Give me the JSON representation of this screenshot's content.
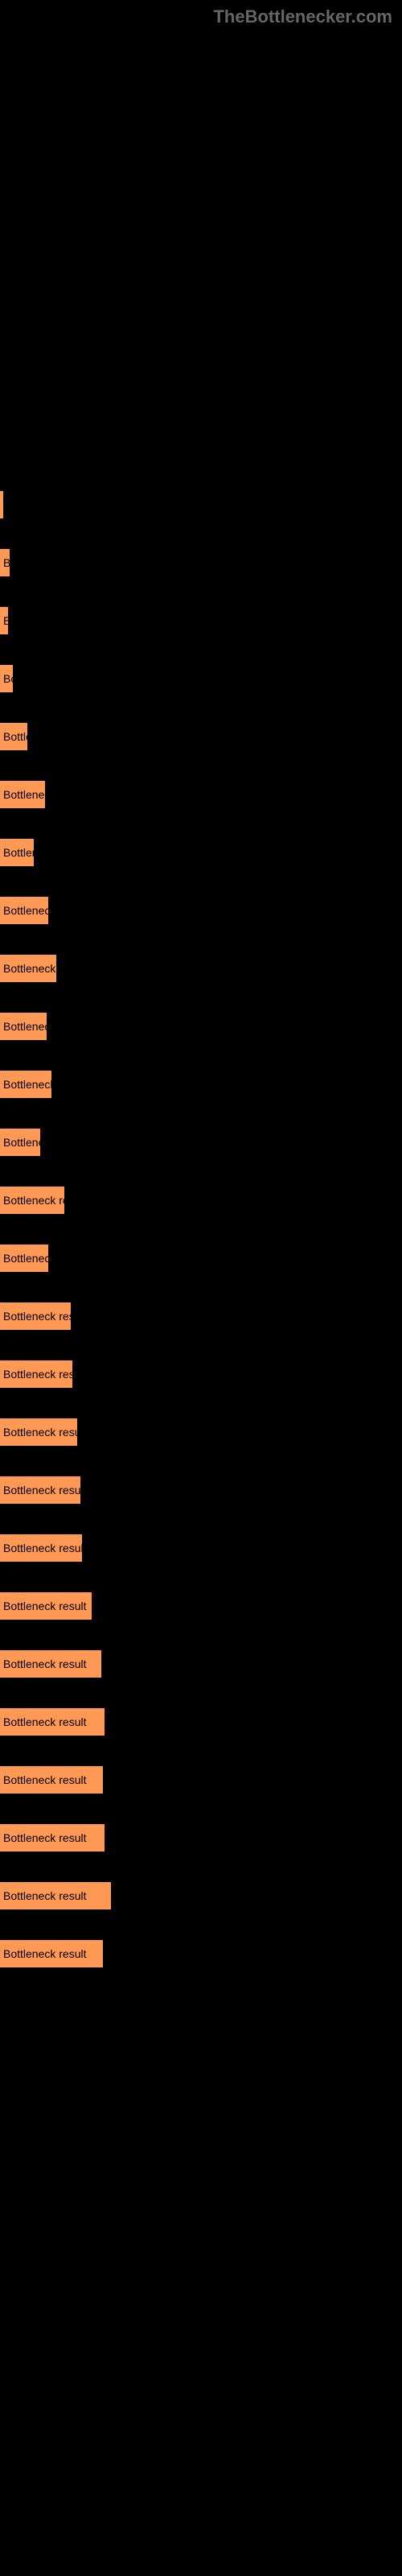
{
  "watermark": "TheBottlenecker.com",
  "chart": {
    "type": "bar",
    "orientation": "horizontal",
    "bar_color": "#ff9955",
    "text_color": "#000000",
    "background_color": "#000000",
    "bar_label_base": "Bottleneck result",
    "bars": [
      {
        "width": 4,
        "label": ""
      },
      {
        "width": 12,
        "label": "B"
      },
      {
        "width": 10,
        "label": "E"
      },
      {
        "width": 16,
        "label": "Bo"
      },
      {
        "width": 34,
        "label": "Bottler"
      },
      {
        "width": 56,
        "label": "Bottleneck"
      },
      {
        "width": 42,
        "label": "Bottlene"
      },
      {
        "width": 60,
        "label": "Bottleneck re"
      },
      {
        "width": 70,
        "label": "Bottleneck resu"
      },
      {
        "width": 58,
        "label": "Bottleneck re"
      },
      {
        "width": 64,
        "label": "Bottleneck res"
      },
      {
        "width": 50,
        "label": "Bottleneck"
      },
      {
        "width": 80,
        "label": "Bottleneck result"
      },
      {
        "width": 60,
        "label": "Bottleneck re"
      },
      {
        "width": 88,
        "label": "Bottleneck result"
      },
      {
        "width": 90,
        "label": "Bottleneck result"
      },
      {
        "width": 96,
        "label": "Bottleneck result"
      },
      {
        "width": 100,
        "label": "Bottleneck result"
      },
      {
        "width": 102,
        "label": "Bottleneck result"
      },
      {
        "width": 114,
        "label": "Bottleneck result"
      },
      {
        "width": 126,
        "label": "Bottleneck result"
      },
      {
        "width": 130,
        "label": "Bottleneck result"
      },
      {
        "width": 128,
        "label": "Bottleneck result"
      },
      {
        "width": 130,
        "label": "Bottleneck result"
      },
      {
        "width": 138,
        "label": "Bottleneck result"
      },
      {
        "width": 128,
        "label": "Bottleneck result"
      }
    ]
  }
}
